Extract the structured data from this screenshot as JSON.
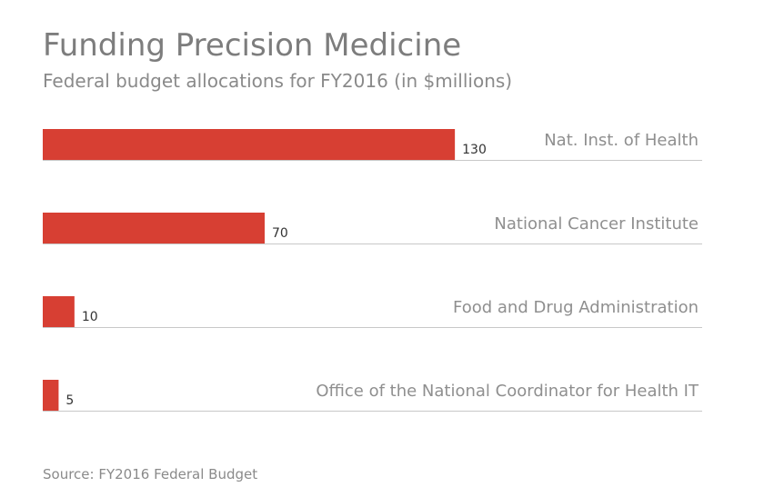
{
  "colors": {
    "bar": "#d73f33",
    "divider": "#c8c8c8"
  },
  "chart_data": {
    "type": "bar",
    "orientation": "horizontal",
    "title": "Funding Precision Medicine",
    "subtitle": "Federal budget allocations for FY2016 (in $millions)",
    "source": "Source: FY2016 Federal Budget",
    "categories": [
      "Nat. Inst. of Health",
      "National Cancer Institute",
      "Food and Drug Administration",
      "Office of the National Coordinator for Health IT"
    ],
    "values": [
      130,
      70,
      10,
      5
    ],
    "xlim": [
      0,
      208
    ],
    "grid": false,
    "legend": "none"
  }
}
